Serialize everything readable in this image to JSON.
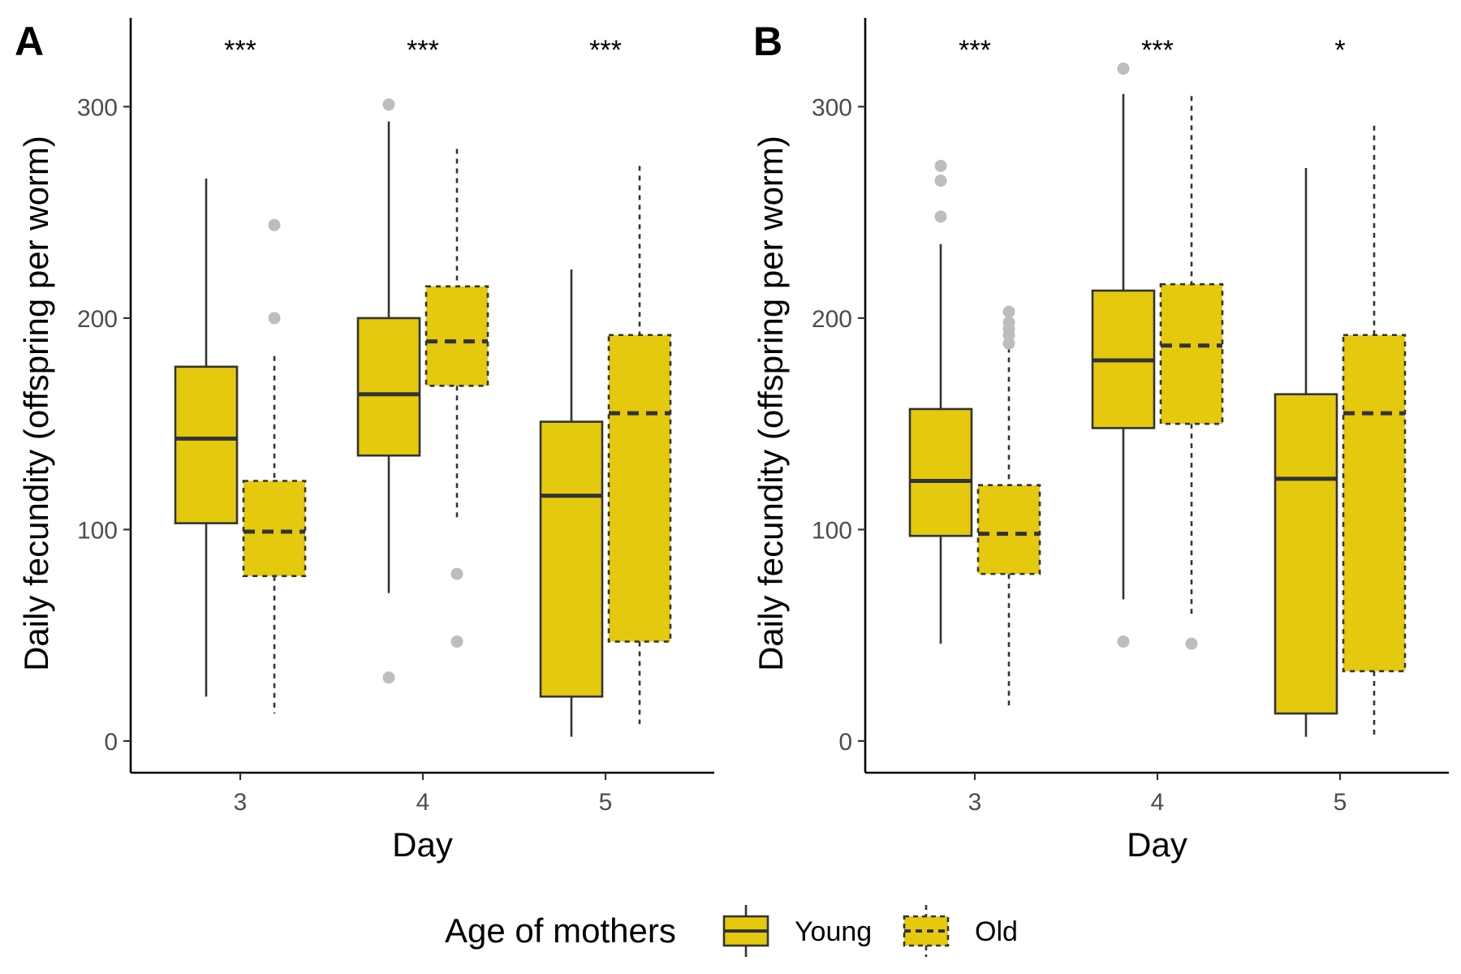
{
  "colors": {
    "fill": "#E5C90F",
    "line": "#333333",
    "outlier": "#BDBDBD"
  },
  "legend": {
    "title": "Age of mothers",
    "items": [
      {
        "label": "Young",
        "linetype": "solid"
      },
      {
        "label": "Old",
        "linetype": "dashed"
      }
    ]
  },
  "chart_data": [
    {
      "type": "boxplot",
      "panel_label": "A",
      "xlabel": "Day",
      "ylabel": "Daily fecundity (offspring per worm)",
      "categories": [
        "3",
        "4",
        "5"
      ],
      "ylim": [
        -15,
        342
      ],
      "yticks": [
        0,
        100,
        200,
        300
      ],
      "significance": [
        "***",
        "***",
        "***"
      ],
      "series": [
        {
          "name": "Young",
          "boxes": [
            {
              "lower_whisker": 21,
              "q1": 103,
              "median": 143,
              "q3": 177,
              "upper_whisker": 266,
              "outliers": []
            },
            {
              "lower_whisker": 70,
              "q1": 135,
              "median": 164,
              "q3": 200,
              "upper_whisker": 293,
              "outliers": [
                30,
                301
              ]
            },
            {
              "lower_whisker": 2,
              "q1": 21,
              "median": 116,
              "q3": 151,
              "upper_whisker": 223,
              "outliers": []
            }
          ]
        },
        {
          "name": "Old",
          "boxes": [
            {
              "lower_whisker": 13,
              "q1": 78,
              "median": 99,
              "q3": 123,
              "upper_whisker": 182,
              "outliers": [
                200,
                244
              ]
            },
            {
              "lower_whisker": 105,
              "q1": 168,
              "median": 189,
              "q3": 215,
              "upper_whisker": 280,
              "outliers": [
                47,
                79
              ]
            },
            {
              "lower_whisker": 8,
              "q1": 47,
              "median": 155,
              "q3": 192,
              "upper_whisker": 272,
              "outliers": []
            }
          ]
        }
      ]
    },
    {
      "type": "boxplot",
      "panel_label": "B",
      "xlabel": "Day",
      "ylabel": "Daily fecundity (offspring per worm)",
      "categories": [
        "3",
        "4",
        "5"
      ],
      "ylim": [
        -15,
        342
      ],
      "yticks": [
        0,
        100,
        200,
        300
      ],
      "significance": [
        "***",
        "***",
        "*"
      ],
      "series": [
        {
          "name": "Young",
          "boxes": [
            {
              "lower_whisker": 46,
              "q1": 97,
              "median": 123,
              "q3": 157,
              "upper_whisker": 235,
              "outliers": [
                248,
                265,
                272
              ]
            },
            {
              "lower_whisker": 67,
              "q1": 148,
              "median": 180,
              "q3": 213,
              "upper_whisker": 306,
              "outliers": [
                47,
                318
              ]
            },
            {
              "lower_whisker": 2,
              "q1": 13,
              "median": 124,
              "q3": 164,
              "upper_whisker": 271,
              "outliers": []
            }
          ]
        },
        {
          "name": "Old",
          "boxes": [
            {
              "lower_whisker": 15,
              "q1": 79,
              "median": 98,
              "q3": 121,
              "upper_whisker": 186,
              "outliers": [
                188,
                192,
                195,
                198,
                203
              ]
            },
            {
              "lower_whisker": 60,
              "q1": 150,
              "median": 187,
              "q3": 216,
              "upper_whisker": 305,
              "outliers": [
                46
              ]
            },
            {
              "lower_whisker": 1,
              "q1": 33,
              "median": 155,
              "q3": 192,
              "upper_whisker": 291,
              "outliers": []
            }
          ]
        }
      ]
    }
  ]
}
